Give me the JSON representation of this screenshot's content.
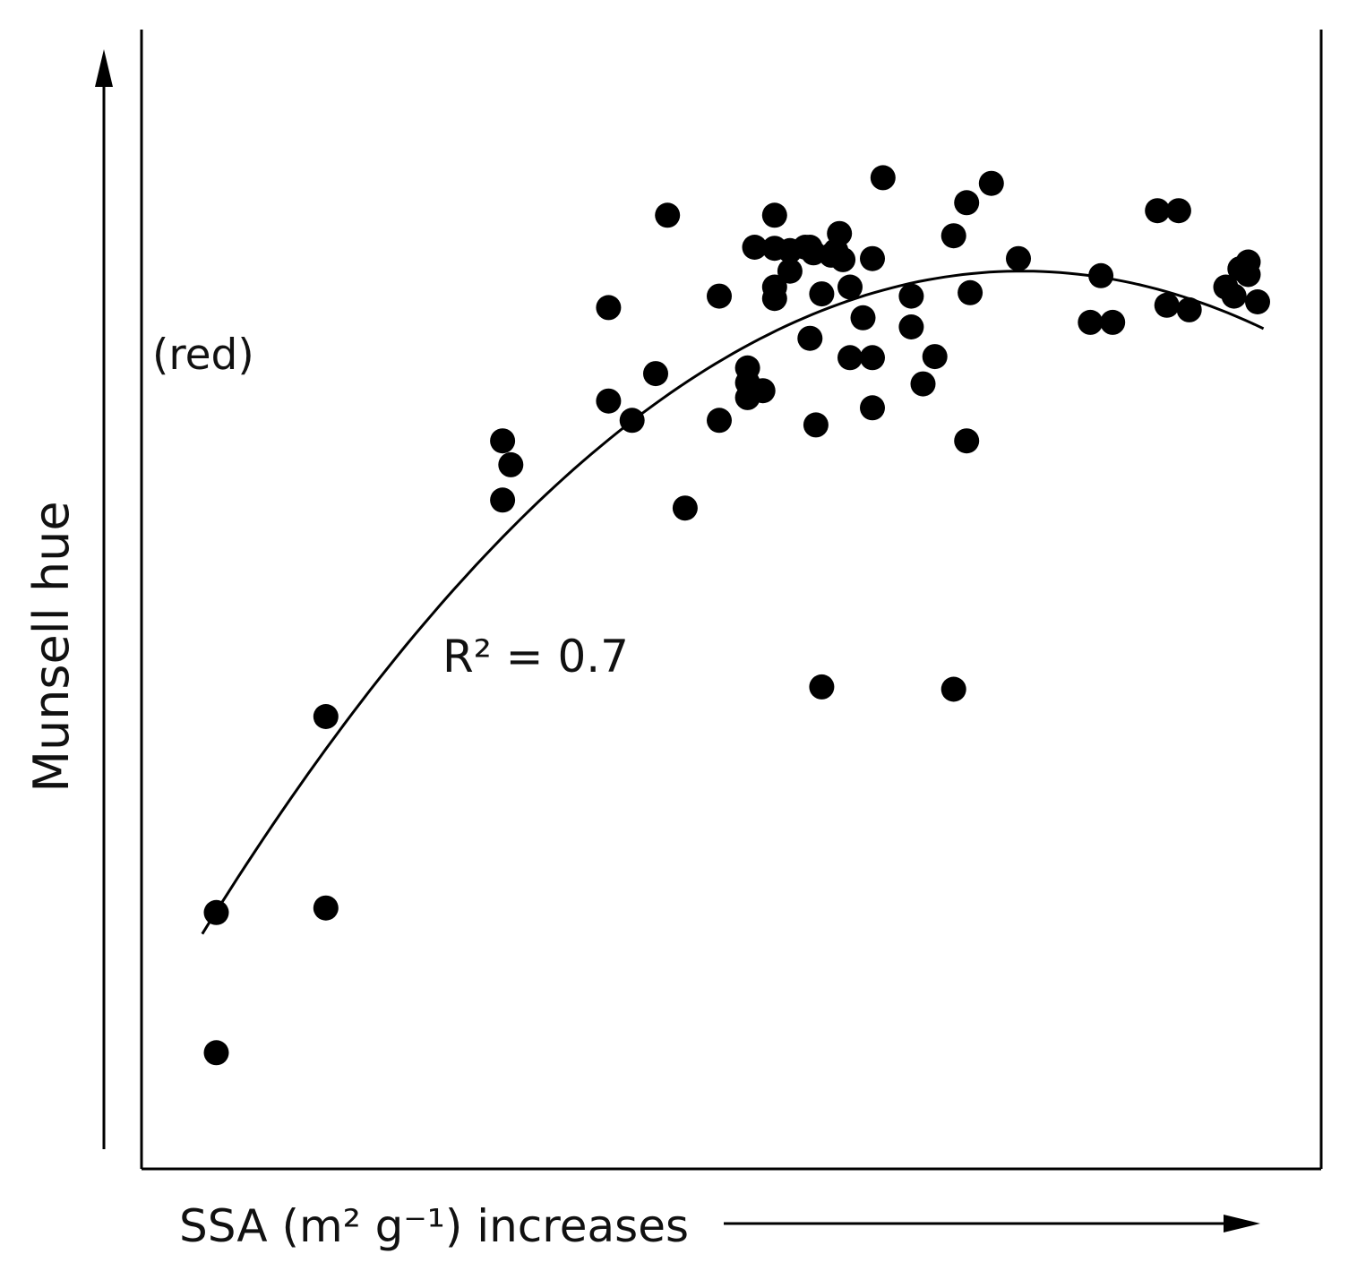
{
  "chart_data": {
    "type": "scatter",
    "title": "",
    "xlabel": "SSA (m² g⁻¹) increases",
    "ylabel": "Munsell hue",
    "y_annotation": "(red)",
    "fit_annotation": "R² = 0.7",
    "xlim": [
      0,
      100
    ],
    "ylim": [
      0,
      100
    ],
    "grid": false,
    "legend": "none",
    "colors": {
      "points": "#000000",
      "axis": "#000000",
      "text": "#111111"
    },
    "fit": {
      "type": "quadratic",
      "vertex": [
        74.6,
        78.8
      ],
      "a": -0.01201,
      "x_range": [
        5.0,
        95.1
      ]
    },
    "series": [
      {
        "points": [
          [
            6.2,
            22.5
          ],
          [
            6.2,
            10.2
          ],
          [
            15.5,
            39.7
          ],
          [
            15.5,
            22.9
          ],
          [
            30.5,
            63.9
          ],
          [
            31.2,
            61.8
          ],
          [
            30.5,
            58.7
          ],
          [
            39.5,
            75.6
          ],
          [
            39.5,
            67.4
          ],
          [
            41.5,
            65.7
          ],
          [
            43.5,
            69.8
          ],
          [
            44.5,
            83.7
          ],
          [
            46.0,
            58.0
          ],
          [
            48.9,
            76.6
          ],
          [
            48.9,
            65.7
          ],
          [
            51.3,
            70.3
          ],
          [
            51.3,
            69.0
          ],
          [
            51.3,
            67.7
          ],
          [
            52.6,
            68.3
          ],
          [
            51.9,
            80.9
          ],
          [
            53.6,
            83.7
          ],
          [
            53.6,
            80.8
          ],
          [
            53.6,
            77.4
          ],
          [
            53.6,
            76.4
          ],
          [
            54.9,
            78.8
          ],
          [
            54.9,
            80.6
          ],
          [
            56.2,
            80.9
          ],
          [
            56.6,
            80.9
          ],
          [
            56.9,
            80.4
          ],
          [
            56.6,
            72.9
          ],
          [
            57.1,
            65.3
          ],
          [
            57.6,
            76.8
          ],
          [
            57.6,
            42.3
          ],
          [
            58.4,
            80.2
          ],
          [
            58.8,
            80.6
          ],
          [
            59.1,
            82.1
          ],
          [
            59.4,
            79.8
          ],
          [
            60.0,
            77.4
          ],
          [
            60.0,
            71.2
          ],
          [
            61.1,
            74.7
          ],
          [
            61.9,
            79.9
          ],
          [
            61.9,
            71.2
          ],
          [
            61.9,
            66.8
          ],
          [
            62.8,
            87.0
          ],
          [
            65.2,
            76.6
          ],
          [
            65.2,
            73.9
          ],
          [
            66.2,
            68.9
          ],
          [
            67.2,
            71.3
          ],
          [
            68.8,
            81.9
          ],
          [
            68.8,
            42.1
          ],
          [
            69.9,
            84.8
          ],
          [
            70.2,
            76.9
          ],
          [
            69.9,
            63.9
          ],
          [
            72.0,
            86.5
          ],
          [
            74.3,
            79.9
          ],
          [
            80.4,
            74.3
          ],
          [
            81.3,
            78.4
          ],
          [
            82.3,
            74.3
          ],
          [
            86.1,
            84.1
          ],
          [
            87.9,
            84.1
          ],
          [
            86.9,
            75.8
          ],
          [
            88.8,
            75.4
          ],
          [
            91.9,
            77.4
          ],
          [
            92.6,
            76.6
          ],
          [
            93.1,
            79.0
          ],
          [
            93.8,
            78.5
          ],
          [
            93.8,
            79.6
          ],
          [
            94.6,
            76.1
          ]
        ]
      }
    ]
  }
}
